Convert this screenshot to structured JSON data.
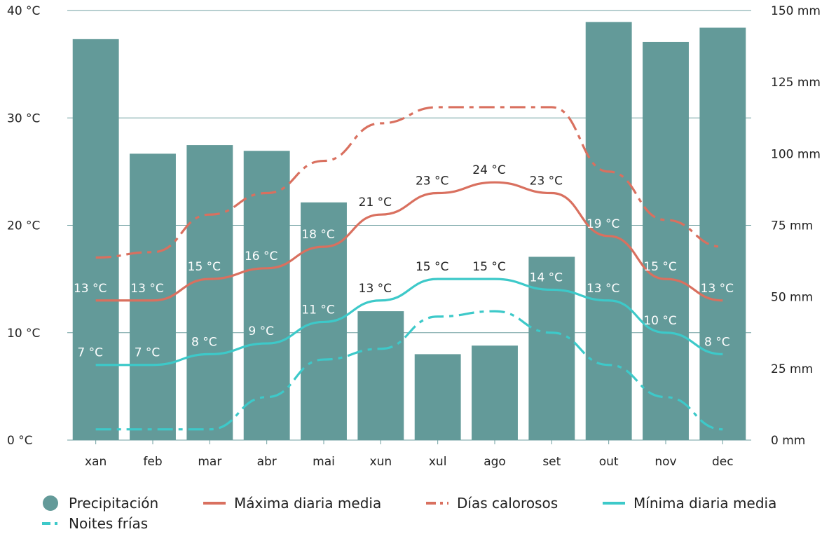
{
  "chart_data": {
    "type": "bar",
    "categories": [
      "xan",
      "feb",
      "mar",
      "abr",
      "mai",
      "xun",
      "xul",
      "ago",
      "set",
      "out",
      "nov",
      "dec"
    ],
    "y_left": {
      "ticks": [
        "0 °C",
        "10 °C",
        "20 °C",
        "30 °C",
        "40 °C"
      ],
      "tick_values": [
        0,
        10,
        20,
        30,
        40
      ],
      "ylim": [
        0,
        40
      ]
    },
    "y_right": {
      "ticks": [
        "0 mm",
        "25 mm",
        "50 mm",
        "75 mm",
        "100 mm",
        "125 mm",
        "150 mm"
      ],
      "tick_values": [
        0,
        25,
        50,
        75,
        100,
        125,
        150
      ],
      "ylim": [
        0,
        150
      ]
    },
    "bars": {
      "name": "Precipitación",
      "axis": "right",
      "color": "#639a99",
      "values": [
        140,
        100,
        103,
        101,
        83,
        45,
        30,
        33,
        64,
        146,
        139,
        144
      ]
    },
    "lines": [
      {
        "name": "Máxima diaria media",
        "axis": "left",
        "color": "#d9705f",
        "style": "solid",
        "values": [
          13,
          13,
          15,
          16,
          18,
          21,
          23,
          24,
          23,
          19,
          15,
          13
        ],
        "labels": [
          "13 °C",
          "13 °C",
          "15 °C",
          "16 °C",
          "18 °C",
          "21 °C",
          "23 °C",
          "24 °C",
          "23 °C",
          "19 °C",
          "15 °C",
          "13 °C"
        ]
      },
      {
        "name": "Días calorosos",
        "axis": "left",
        "color": "#d9705f",
        "style": "dashdot",
        "values": [
          17,
          17.5,
          21,
          23,
          26,
          29.5,
          31,
          31,
          31,
          25,
          20.5,
          18
        ]
      },
      {
        "name": "Mínima diaria media",
        "axis": "left",
        "color": "#3dc9c9",
        "style": "solid",
        "values": [
          7,
          7,
          8,
          9,
          11,
          13,
          15,
          15,
          14,
          13,
          10,
          8
        ],
        "labels": [
          "7 °C",
          "7 °C",
          "8 °C",
          "9 °C",
          "11 °C",
          "13 °C",
          "15 °C",
          "15 °C",
          "14 °C",
          "13 °C",
          "10 °C",
          "8 °C"
        ]
      },
      {
        "name": "Noites frías",
        "axis": "left",
        "color": "#3dc9c9",
        "style": "dashdot",
        "values": [
          1,
          1,
          1,
          4,
          7.5,
          8.5,
          11.5,
          12,
          10,
          7,
          4,
          1
        ]
      }
    ],
    "label_colors": {
      "on_bar": "#ffffff",
      "off_bar": "#222222"
    },
    "grid": true
  },
  "legend": [
    {
      "label": "Precipitación",
      "marker": "circle",
      "color": "#639a99"
    },
    {
      "label": "Máxima diaria media",
      "marker": "solid-line",
      "color": "#d9705f"
    },
    {
      "label": "Días calorosos",
      "marker": "dashdot-line",
      "color": "#d9705f"
    },
    {
      "label": "Mínima diaria media",
      "marker": "solid-line",
      "color": "#3dc9c9"
    },
    {
      "label": "Noites frías",
      "marker": "dashdot-line",
      "color": "#3dc9c9"
    }
  ]
}
